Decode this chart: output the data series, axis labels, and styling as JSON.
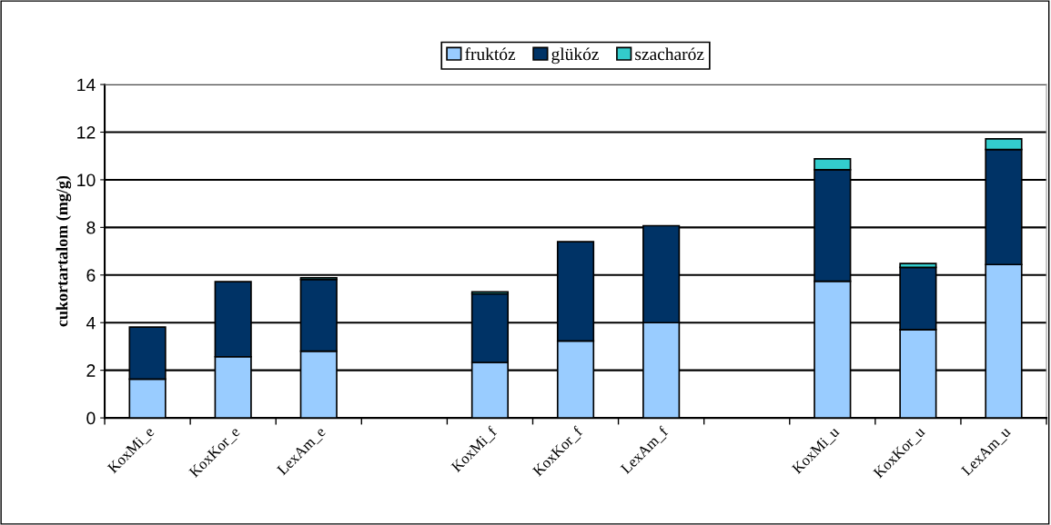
{
  "chart_data": {
    "type": "bar",
    "stacked": true,
    "ylabel": "cukortartalom (mg/g)",
    "categories": [
      "KoxMi_e",
      "KoxKor_e",
      "LexAm_e",
      null,
      "KoxMi_f",
      "KoxKor_f",
      "LexAm_f",
      null,
      "KoxMi_u",
      "KoxKor_u",
      "LexAm_u"
    ],
    "series": [
      {
        "name": "fruktóz",
        "color": "#99ccff",
        "values": [
          1.63,
          2.57,
          2.8,
          null,
          2.33,
          3.23,
          4.0,
          null,
          5.74,
          3.71,
          6.44
        ]
      },
      {
        "name": "glükóz",
        "color": "#003366",
        "values": [
          2.18,
          3.15,
          3.01,
          null,
          2.88,
          4.17,
          4.07,
          null,
          4.68,
          2.61,
          4.83
        ]
      },
      {
        "name": "szacharóz",
        "color": "#33cccc",
        "values": [
          null,
          null,
          0.07,
          null,
          0.08,
          null,
          null,
          null,
          0.46,
          0.16,
          0.45
        ]
      }
    ],
    "ylim": [
      0,
      14
    ],
    "yticks": [
      0,
      2,
      4,
      6,
      8,
      10,
      12,
      14
    ],
    "grid": "y",
    "legend": "top"
  }
}
